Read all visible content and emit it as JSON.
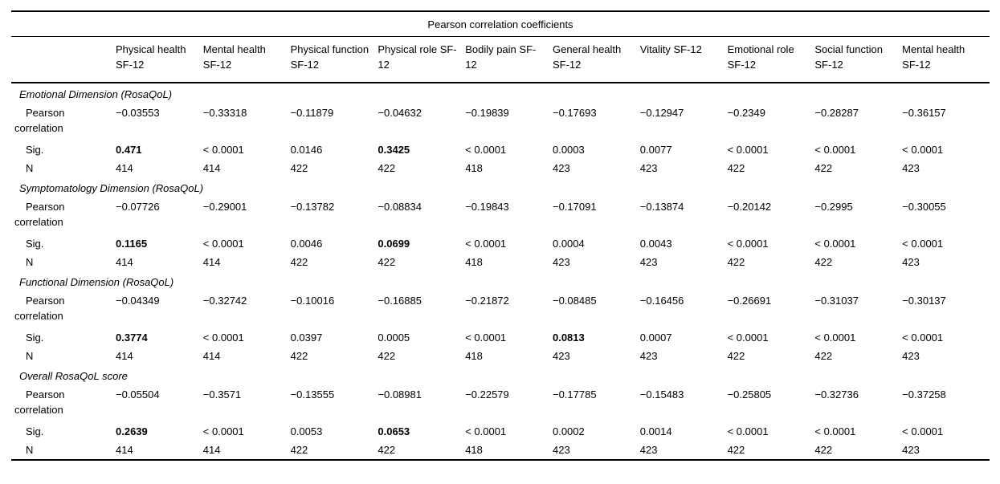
{
  "table": {
    "title": "Pearson correlation coefficients",
    "columns": [
      "Physical health SF-12",
      "Mental health SF-12",
      "Physical function SF-12",
      "Physical role SF-12",
      "Bodily pain SF-12",
      "General health SF-12",
      "Vitality SF-12",
      "Emotional role SF-12",
      "Social function SF-12",
      "Mental health SF-12"
    ],
    "row_labels": {
      "pearson": "Pearson correlation",
      "sig": "Sig.",
      "n": "N"
    },
    "groups": [
      {
        "name": "Emotional Dimension (RosaQoL)",
        "pearson": [
          "−0.03553",
          "−0.33318",
          "−0.11879",
          "−0.04632",
          "−0.19839",
          "−0.17693",
          "−0.12947",
          "−0.2349",
          "−0.28287",
          "−0.36157"
        ],
        "sig": [
          "0.471",
          "< 0.0001",
          "0.0146",
          "0.3425",
          "< 0.0001",
          "0.0003",
          "0.0077",
          "< 0.0001",
          "< 0.0001",
          "< 0.0001"
        ],
        "sig_bold": [
          true,
          false,
          false,
          true,
          false,
          false,
          false,
          false,
          false,
          false
        ],
        "n": [
          "414",
          "414",
          "422",
          "422",
          "418",
          "423",
          "423",
          "422",
          "422",
          "423"
        ]
      },
      {
        "name": "Symptomatology Dimension (RosaQoL)",
        "pearson": [
          "−0.07726",
          "−0.29001",
          "−0.13782",
          "−0.08834",
          "−0.19843",
          "−0.17091",
          "−0.13874",
          "−0.20142",
          "−0.2995",
          "−0.30055"
        ],
        "sig": [
          "0.1165",
          "< 0.0001",
          "0.0046",
          "0.0699",
          "< 0.0001",
          "0.0004",
          "0.0043",
          "< 0.0001",
          "< 0.0001",
          "< 0.0001"
        ],
        "sig_bold": [
          true,
          false,
          false,
          true,
          false,
          false,
          false,
          false,
          false,
          false
        ],
        "n": [
          "414",
          "414",
          "422",
          "422",
          "418",
          "423",
          "423",
          "422",
          "422",
          "423"
        ]
      },
      {
        "name": "Functional Dimension (RosaQoL)",
        "pearson": [
          "−0.04349",
          "−0.32742",
          "−0.10016",
          "−0.16885",
          "−0.21872",
          "−0.08485",
          "−0.16456",
          "−0.26691",
          "−0.31037",
          "−0.30137"
        ],
        "sig": [
          "0.3774",
          "< 0.0001",
          "0.0397",
          "0.0005",
          "< 0.0001",
          "0.0813",
          "0.0007",
          "< 0.0001",
          "< 0.0001",
          "< 0.0001"
        ],
        "sig_bold": [
          true,
          false,
          false,
          false,
          false,
          true,
          false,
          false,
          false,
          false
        ],
        "n": [
          "414",
          "414",
          "422",
          "422",
          "418",
          "423",
          "423",
          "422",
          "422",
          "423"
        ]
      },
      {
        "name": "Overall RosaQoL score",
        "pearson": [
          "−0.05504",
          "−0.3571",
          "−0.13555",
          "−0.08981",
          "−0.22579",
          "−0.17785",
          "−0.15483",
          "−0.25805",
          "−0.32736",
          "−0.37258"
        ],
        "sig": [
          "0.2639",
          "< 0.0001",
          "0.0053",
          "0.0653",
          "< 0.0001",
          "0.0002",
          "0.0014",
          "< 0.0001",
          "< 0.0001",
          "< 0.0001"
        ],
        "sig_bold": [
          true,
          false,
          false,
          true,
          false,
          false,
          false,
          false,
          false,
          false
        ],
        "n": [
          "414",
          "414",
          "422",
          "422",
          "418",
          "423",
          "423",
          "422",
          "422",
          "423"
        ]
      }
    ]
  }
}
